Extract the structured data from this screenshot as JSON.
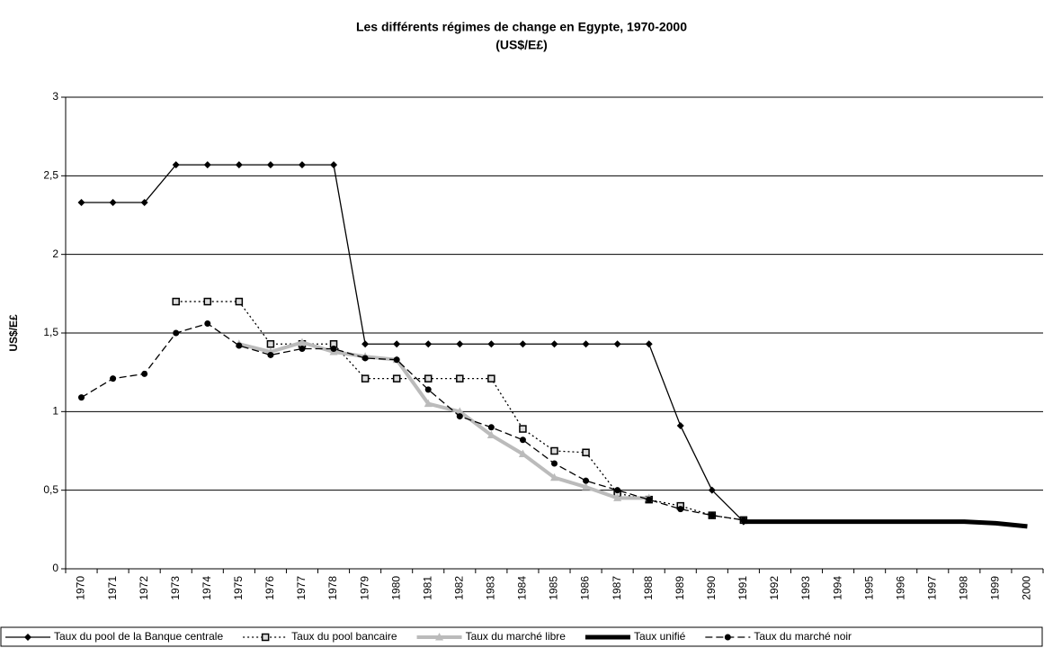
{
  "chart_data": {
    "type": "line",
    "title": "Les différents régimes de change en Egypte, 1970-2000",
    "subtitle": "(US$/E£)",
    "y_label": "US$/E£",
    "categories": [
      "1970",
      "1971",
      "1972",
      "1973",
      "1974",
      "1975",
      "1976",
      "1977",
      "1978",
      "1979",
      "1980",
      "1981",
      "1982",
      "1983",
      "1984",
      "1985",
      "1986",
      "1987",
      "1988",
      "1989",
      "1990",
      "1991",
      "1992",
      "1993",
      "1994",
      "1995",
      "1996",
      "1997",
      "1998",
      "1999",
      "2000"
    ],
    "ylim": [
      0,
      3
    ],
    "yticks": [
      0,
      {
        "value": 0.5,
        "label": "0,5"
      },
      1,
      {
        "value": 1.5,
        "label": "1,5"
      },
      2,
      {
        "value": 2.5,
        "label": "2,5"
      },
      3
    ],
    "grid": true,
    "legend": "bottom",
    "series": [
      {
        "name": "Taux du pool de la Banque centrale",
        "color": "#000000",
        "width": 1.3,
        "dash": "none",
        "marker": "diamond",
        "values": [
          2.33,
          2.33,
          2.33,
          2.57,
          2.57,
          2.57,
          2.57,
          2.57,
          2.57,
          1.43,
          1.43,
          1.43,
          1.43,
          1.43,
          1.43,
          1.43,
          1.43,
          1.43,
          1.43,
          0.91,
          0.5,
          0.3,
          null,
          null,
          null,
          null,
          null,
          null,
          null,
          null,
          null
        ]
      },
      {
        "name": "Taux du pool bancaire",
        "color": "#000000",
        "width": 1.3,
        "dash": "2 3",
        "marker": "square",
        "values": [
          null,
          null,
          null,
          1.7,
          1.7,
          1.7,
          1.43,
          1.43,
          1.43,
          1.21,
          1.21,
          1.21,
          1.21,
          1.21,
          0.89,
          0.75,
          0.74,
          0.48,
          0.44,
          0.4,
          0.34,
          0.31,
          null,
          null,
          null,
          null,
          null,
          null,
          null,
          null,
          null
        ]
      },
      {
        "name": "Taux du marché libre",
        "color": "#bbbbbb",
        "width": 4,
        "dash": "none",
        "marker": "triangle",
        "values": [
          null,
          null,
          null,
          null,
          null,
          1.43,
          1.38,
          1.44,
          1.38,
          1.35,
          1.33,
          1.05,
          1.0,
          0.85,
          0.73,
          0.58,
          0.52,
          0.45,
          0.45,
          null,
          null,
          null,
          null,
          null,
          null,
          null,
          null,
          null,
          null,
          null,
          null
        ]
      },
      {
        "name": "Taux unifié",
        "color": "#000000",
        "width": 5,
        "dash": "none",
        "marker": "none",
        "values": [
          null,
          null,
          null,
          null,
          null,
          null,
          null,
          null,
          null,
          null,
          null,
          null,
          null,
          null,
          null,
          null,
          null,
          null,
          null,
          null,
          null,
          0.3,
          0.3,
          0.3,
          0.3,
          0.3,
          0.3,
          0.3,
          0.3,
          0.29,
          0.27
        ]
      },
      {
        "name": "Taux du marché noir",
        "color": "#000000",
        "width": 1.3,
        "dash": "8 4",
        "marker": "circle",
        "values": [
          1.09,
          1.21,
          1.24,
          1.5,
          1.56,
          1.42,
          1.36,
          1.4,
          1.4,
          1.34,
          1.33,
          1.14,
          0.97,
          0.9,
          0.82,
          0.67,
          0.56,
          0.5,
          0.44,
          0.38,
          0.34,
          0.31,
          null,
          null,
          null,
          null,
          null,
          null,
          null,
          null,
          null
        ]
      }
    ]
  }
}
